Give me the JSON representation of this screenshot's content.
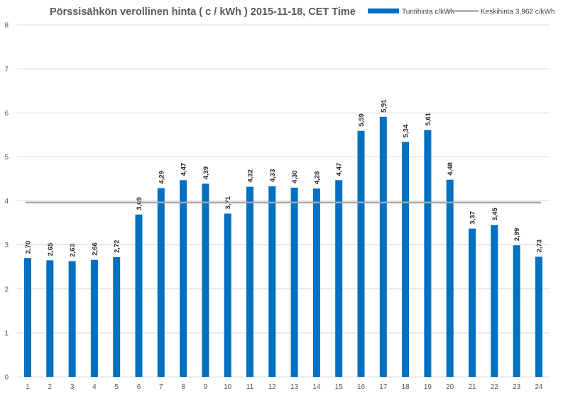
{
  "chart_data": {
    "type": "bar",
    "title": "Pörssisähkön verollinen hinta ( c / kWh ) 2015-11-18, CET Time",
    "xlabel": "",
    "ylabel": "",
    "ylim": [
      0,
      8
    ],
    "yticks": [
      "0",
      "1",
      "2",
      "3",
      "4",
      "5",
      "6",
      "7",
      "8"
    ],
    "grid": true,
    "legend_position": "top-right",
    "categories": [
      "1",
      "2",
      "3",
      "4",
      "5",
      "6",
      "7",
      "8",
      "9",
      "10",
      "11",
      "12",
      "13",
      "14",
      "15",
      "16",
      "17",
      "18",
      "19",
      "20",
      "21",
      "22",
      "23",
      "24"
    ],
    "series": [
      {
        "name": "Tuntihinta c/kWh",
        "type": "bar",
        "color": "#0070C0",
        "values": [
          2.7,
          2.65,
          2.63,
          2.66,
          2.72,
          3.69,
          4.29,
          4.47,
          4.39,
          3.71,
          4.32,
          4.33,
          4.3,
          4.28,
          4.47,
          5.59,
          5.91,
          5.34,
          5.61,
          4.48,
          3.37,
          3.45,
          2.99,
          2.73
        ],
        "labels": [
          "2,70",
          "2,65",
          "2,63",
          "2,66",
          "2,72",
          "3,69",
          "4,29",
          "4,47",
          "4,39",
          "3,71",
          "4,32",
          "4,33",
          "4,30",
          "4,28",
          "4,47",
          "5,59",
          "5,91",
          "5,34",
          "5,61",
          "4,48",
          "3,37",
          "3,45",
          "2,99",
          "2,73"
        ]
      },
      {
        "name": "Keskihinta 3,962 c/kWh",
        "type": "line",
        "color": "#A6A6A6",
        "value": 3.962
      }
    ]
  }
}
